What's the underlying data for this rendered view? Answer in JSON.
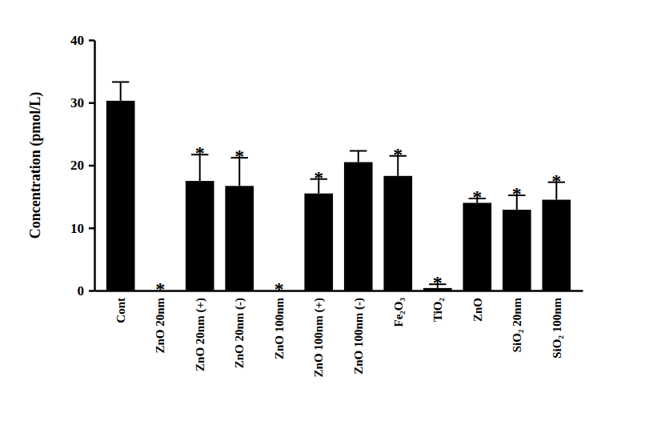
{
  "chart_data": {
    "type": "bar",
    "y_label": "Concentration (pmol/L)",
    "categories": [
      "Cont",
      "ZnO 20nm",
      "ZnO 20nm (+)",
      "ZnO 20nm (-)",
      "ZnO 100nm",
      "ZnO 100nm (+)",
      "ZnO 100nm (-)",
      "Fe₂O₃",
      "TiO₂",
      "ZnO",
      "SiO₂ 20nm",
      "SiO₂ 100nm"
    ],
    "values": [
      30.3,
      0,
      17.5,
      16.7,
      0,
      15.5,
      20.5,
      18.3,
      0.4,
      14.0,
      12.9,
      14.5
    ],
    "errors": [
      3.0,
      0,
      4.2,
      4.5,
      0,
      2.3,
      1.8,
      3.2,
      0.6,
      0.7,
      2.3,
      2.8
    ],
    "annotations": [
      null,
      "*",
      "*",
      "*",
      "*",
      "*",
      null,
      "*",
      "*",
      "*",
      "*",
      "*"
    ],
    "color": "#000000",
    "ylim": [
      0,
      40
    ],
    "yticks": [
      0,
      10,
      20,
      30,
      40
    ],
    "grid": false
  }
}
